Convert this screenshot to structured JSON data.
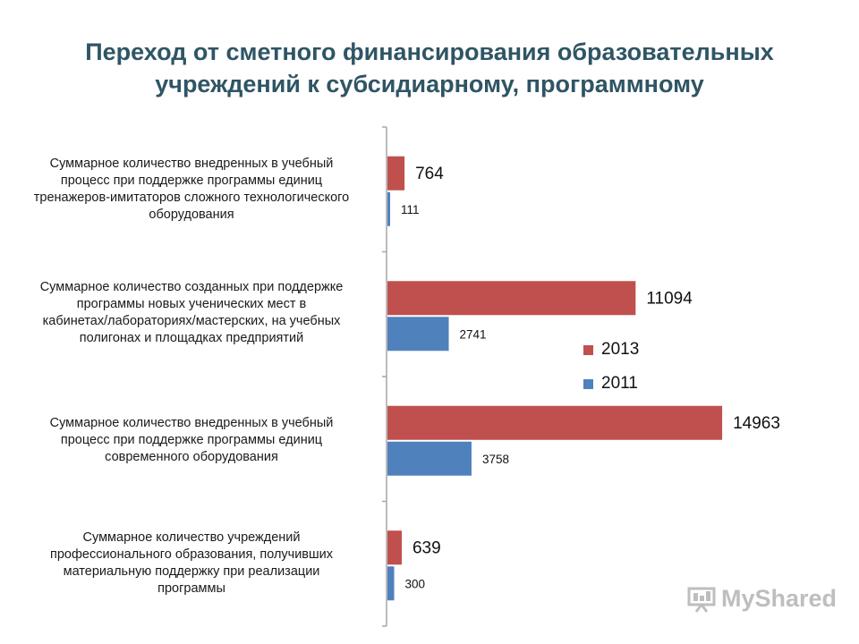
{
  "title": {
    "line1": "Переход от сметного финансирования образовательных",
    "line2": "учреждений к субсидиарному, программному"
  },
  "chart_data": {
    "type": "bar",
    "orientation": "horizontal",
    "xlim": [
      0,
      16000
    ],
    "grid": false,
    "legend_position": "right",
    "categories": [
      "Суммарное количество внедренных в учебный процесс при поддержке программы единиц тренажеров-имитаторов сложного технологического оборудования",
      "Суммарное количество созданных при поддержке программы новых ученических мест в кабинетах/лабораториях/мастерских, на учебных полигонах и площадках предприятий",
      "Суммарное количество внедренных в учебный процесс при поддержке программы единиц современного оборудования",
      "Суммарное количество учреждений профессионального образования, получивших материальную поддержку при реализации программы"
    ],
    "category_lines": [
      [
        "Суммарное количество внедренных в учебный",
        "процесс при поддержке программы единиц",
        "тренажеров-имитаторов сложного технологического",
        "оборудования"
      ],
      [
        "Суммарное количество созданных при поддержке",
        "программы новых ученических мест в",
        "кабинетах/лабораториях/мастерских, на учебных",
        "полигонах и площадках предприятий"
      ],
      [
        "Суммарное количество внедренных в учебный",
        "процесс при поддержке программы единиц",
        "современного оборудования"
      ],
      [
        "Суммарное количество учреждений",
        "профессионального образования, получивших",
        "материальную поддержку при реализации",
        "программы"
      ]
    ],
    "series": [
      {
        "name": "2013",
        "color": "#c0504d",
        "values": [
          764,
          11094,
          14963,
          639
        ]
      },
      {
        "name": "2011",
        "color": "#4f81bd",
        "values": [
          111,
          2741,
          3758,
          300
        ]
      }
    ]
  },
  "watermark": {
    "text": "MyShared",
    "icon": "presentation-board-icon"
  }
}
